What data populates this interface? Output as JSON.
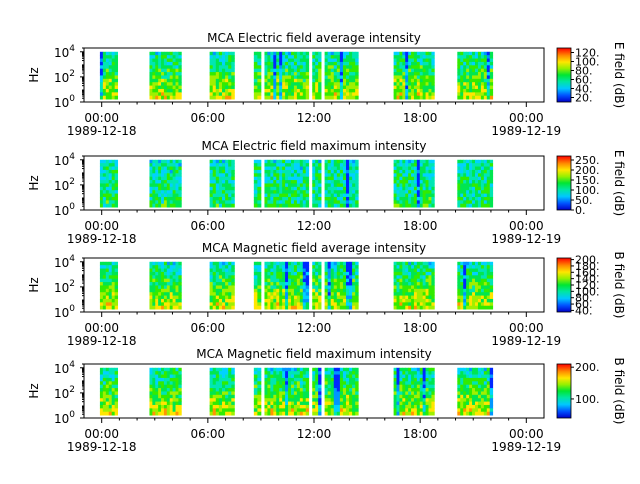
{
  "chart_data": [
    {
      "type": "heatmap",
      "title": "MCA  Electric field average intensity",
      "ylabel": "Hz",
      "y_scale": "log",
      "ylim": [
        1,
        20000
      ],
      "y_ticks": [
        {
          "base": "10",
          "exp": "0"
        },
        {
          "base": "10",
          "exp": "2"
        },
        {
          "base": "10",
          "exp": "4"
        }
      ],
      "x_ticks": [
        "00:00",
        "06:00",
        "12:00",
        "18:00",
        "00:00"
      ],
      "x_dates": [
        "1989-12-18",
        "1989-12-19"
      ],
      "xlim": [
        -1,
        25
      ],
      "colorbar": {
        "label": "E field (dB)",
        "range": [
          10,
          130
        ],
        "ticks": [
          "20.",
          "40.",
          "60.",
          "80.",
          "100.",
          "120."
        ],
        "tick_values": [
          20,
          40,
          60,
          80,
          100,
          120
        ]
      },
      "segments_hours": [
        [
          -0.1,
          0.9
        ],
        [
          2.7,
          4.5
        ],
        [
          6.1,
          7.5
        ],
        [
          8.6,
          9.0
        ],
        [
          9.2,
          11.7
        ],
        [
          11.9,
          12.4
        ],
        [
          12.6,
          14.5
        ],
        [
          16.5,
          18.8
        ],
        [
          20.1,
          22.1
        ]
      ]
    },
    {
      "type": "heatmap",
      "title": "MCA  Electric field maximum intensity",
      "ylabel": "Hz",
      "y_scale": "log",
      "ylim": [
        1,
        20000
      ],
      "y_ticks": [
        {
          "base": "10",
          "exp": "0"
        },
        {
          "base": "10",
          "exp": "2"
        },
        {
          "base": "10",
          "exp": "4"
        }
      ],
      "x_ticks": [
        "00:00",
        "06:00",
        "12:00",
        "18:00",
        "00:00"
      ],
      "x_dates": [
        "1989-12-18",
        "1989-12-19"
      ],
      "xlim": [
        -1,
        25
      ],
      "colorbar": {
        "label": "E field (dB)",
        "range": [
          0,
          270
        ],
        "ticks": [
          "0.",
          "50.",
          "100.",
          "150.",
          "200.",
          "250."
        ],
        "tick_values": [
          0,
          50,
          100,
          150,
          200,
          250
        ]
      },
      "segments_hours": [
        [
          -0.1,
          0.9
        ],
        [
          2.7,
          4.5
        ],
        [
          6.1,
          7.5
        ],
        [
          8.6,
          9.0
        ],
        [
          9.2,
          11.7
        ],
        [
          11.9,
          12.4
        ],
        [
          12.6,
          14.5
        ],
        [
          16.5,
          18.8
        ],
        [
          20.1,
          22.1
        ]
      ]
    },
    {
      "type": "heatmap",
      "title": "MCA  Magnetic field average intensity",
      "ylabel": "Hz",
      "y_scale": "log",
      "ylim": [
        1,
        20000
      ],
      "y_ticks": [
        {
          "base": "10",
          "exp": "0"
        },
        {
          "base": "10",
          "exp": "2"
        },
        {
          "base": "10",
          "exp": "4"
        }
      ],
      "x_ticks": [
        "00:00",
        "06:00",
        "12:00",
        "18:00",
        "00:00"
      ],
      "x_dates": [
        "1989-12-18",
        "1989-12-19"
      ],
      "xlim": [
        -1,
        25
      ],
      "colorbar": {
        "label": "B field (dB)",
        "range": [
          35,
          205
        ],
        "ticks": [
          "40.",
          "60.",
          "80.",
          "100.",
          "120.",
          "140.",
          "160.",
          "180.",
          "200."
        ],
        "tick_values": [
          40,
          60,
          80,
          100,
          120,
          140,
          160,
          180,
          200
        ]
      },
      "segments_hours": [
        [
          -0.1,
          0.9
        ],
        [
          2.7,
          4.5
        ],
        [
          6.1,
          7.5
        ],
        [
          8.6,
          9.0
        ],
        [
          9.2,
          11.7
        ],
        [
          11.9,
          12.4
        ],
        [
          12.6,
          14.5
        ],
        [
          16.5,
          18.8
        ],
        [
          20.1,
          22.1
        ]
      ]
    },
    {
      "type": "heatmap",
      "title": "MCA  Magnetic field maximum intensity",
      "ylabel": "Hz",
      "y_scale": "log",
      "ylim": [
        1,
        20000
      ],
      "y_ticks": [
        {
          "base": "10",
          "exp": "0"
        },
        {
          "base": "10",
          "exp": "2"
        },
        {
          "base": "10",
          "exp": "4"
        }
      ],
      "x_ticks": [
        "00:00",
        "06:00",
        "12:00",
        "18:00",
        "00:00"
      ],
      "x_dates": [
        "1989-12-18",
        "1989-12-19"
      ],
      "xlim": [
        -1,
        25
      ],
      "colorbar": {
        "label": "B field (dB)",
        "range": [
          40,
          210
        ],
        "ticks": [
          "100.",
          "200."
        ],
        "tick_values": [
          100,
          200
        ]
      },
      "segments_hours": [
        [
          -0.1,
          0.9
        ],
        [
          2.7,
          4.5
        ],
        [
          6.1,
          7.5
        ],
        [
          8.6,
          9.0
        ],
        [
          9.2,
          11.7
        ],
        [
          11.9,
          12.4
        ],
        [
          12.6,
          14.5
        ],
        [
          16.5,
          18.8
        ],
        [
          20.1,
          22.1
        ]
      ]
    }
  ]
}
